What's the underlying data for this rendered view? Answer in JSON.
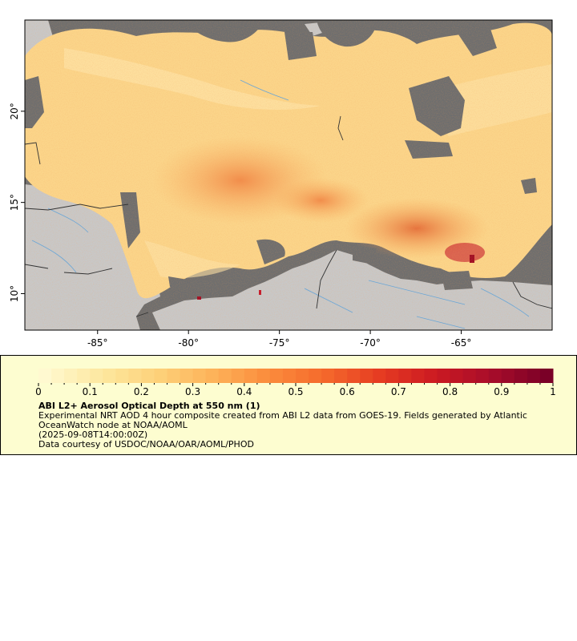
{
  "map": {
    "x_axis": {
      "ticks": [
        -85,
        -80,
        -75,
        -70,
        -65
      ],
      "labels": [
        "-85°",
        "-80°",
        "-75°",
        "-70°",
        "-65°"
      ],
      "range": [
        -89,
        -60
      ]
    },
    "y_axis": {
      "ticks": [
        10,
        15,
        20
      ],
      "labels": [
        "10°",
        "15°",
        "20°"
      ],
      "range": [
        8,
        25
      ]
    },
    "colors": {
      "land": "#c8c8c8",
      "nodata": "#6e6e6e",
      "rivers": "#6aa6d6",
      "borders": "#333333"
    }
  },
  "colorbar": {
    "ticks": [
      0,
      0.1,
      0.2,
      0.3,
      0.4,
      0.5,
      0.6,
      0.7,
      0.8,
      0.9,
      1
    ],
    "labels": [
      "0",
      "0.1",
      "0.2",
      "0.3",
      "0.4",
      "0.5",
      "0.6",
      "0.7",
      "0.8",
      "0.9",
      "1"
    ],
    "colormap": [
      "#fff9d0",
      "#fde8a0",
      "#fdd27a",
      "#fdb35a",
      "#fb8c3c",
      "#f56a2c",
      "#e63c22",
      "#cc1a22",
      "#a80d2a",
      "#7a0027"
    ]
  },
  "legend": {
    "title": "ABI L2+ Aerosol Optical Depth at 550 nm (1)",
    "description": "Experimental NRT AOD 4 hour composite created from ABI L2 data from GOES-19. Fields generated by Atlantic OceanWatch node at NOAA/AOML",
    "date": "(2025-09-08T14:00:00Z)",
    "credit": "Data courtesy of USDOC/NOAA/OAR/AOML/PHOD"
  }
}
